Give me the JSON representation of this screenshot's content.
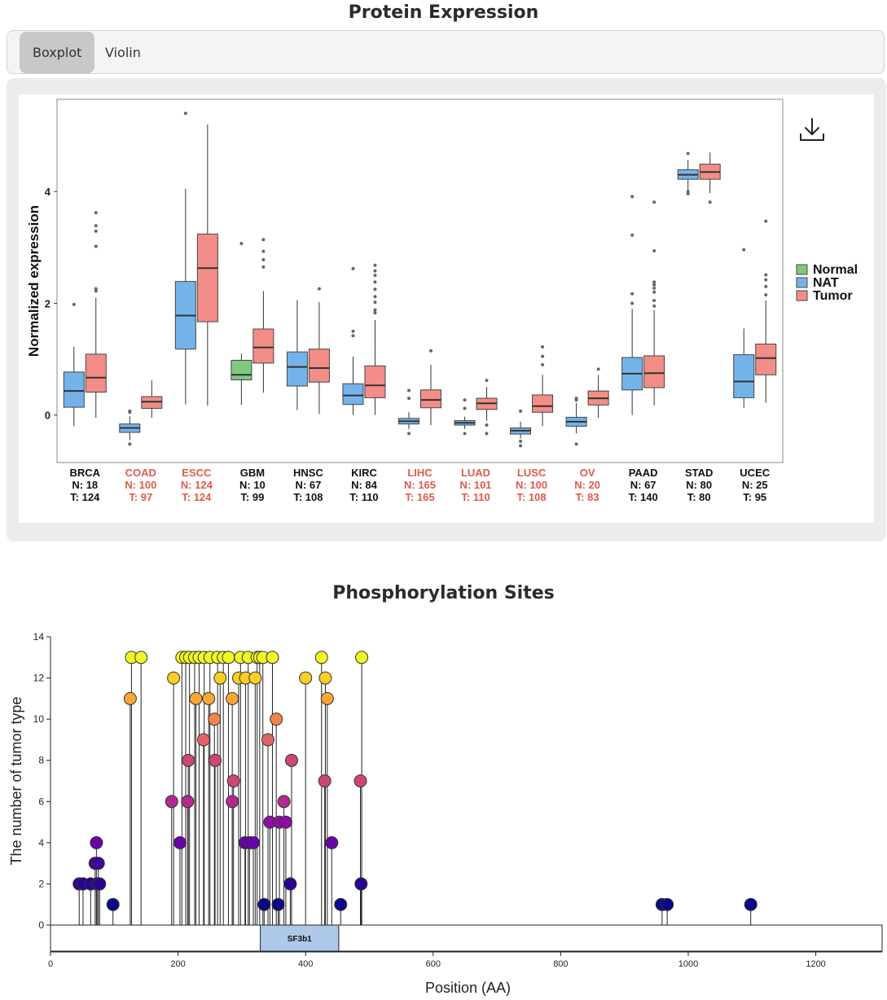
{
  "expression": {
    "title": "Protein Expression",
    "tabs": [
      {
        "label": "Boxplot",
        "active": true
      },
      {
        "label": "Violin",
        "active": false
      }
    ],
    "download_icon": "download-icon"
  },
  "phospho": {
    "title": "Phosphorylation Sites"
  },
  "colors": {
    "normal": "#7fc97f",
    "nat": "#74b3ea",
    "tumor": "#f28e87",
    "highlight_label": "#e05a4a",
    "domain": "#aec8ea"
  },
  "chart_data": [
    {
      "type": "boxplot",
      "ylabel": "Normalized expression",
      "ylim": [
        -0.85,
        5.65
      ],
      "yticks": [
        0,
        2,
        4
      ],
      "legend": {
        "placement": "right",
        "entries": [
          "Normal",
          "NAT",
          "Tumor"
        ]
      },
      "categories": [
        {
          "name": "BRCA",
          "highlight": false,
          "counts": [
            "N: 18",
            "T: 124"
          ],
          "boxes": [
            {
              "group": "NAT",
              "q1": 0.14,
              "median": 0.43,
              "q3": 0.77,
              "wlo": -0.2,
              "whi": 1.22,
              "outliers": [
                1.98
              ]
            },
            {
              "group": "Tumor",
              "q1": 0.41,
              "median": 0.67,
              "q3": 1.09,
              "wlo": -0.05,
              "whi": 2.1,
              "outliers": [
                2.22,
                2.26,
                3.02,
                3.29,
                3.39,
                3.62
              ]
            }
          ]
        },
        {
          "name": "COAD",
          "highlight": true,
          "counts": [
            "N: 100",
            "T: 97"
          ],
          "boxes": [
            {
              "group": "NAT",
              "q1": -0.31,
              "median": -0.23,
              "q3": -0.16,
              "wlo": -0.45,
              "whi": -0.02,
              "outliers": [
                -0.52,
                0.05,
                0.07
              ]
            },
            {
              "group": "Tumor",
              "q1": 0.12,
              "median": 0.24,
              "q3": 0.33,
              "wlo": -0.05,
              "whi": 0.62,
              "outliers": []
            }
          ]
        },
        {
          "name": "ESCC",
          "highlight": true,
          "counts": [
            "N: 124",
            "T: 124"
          ],
          "boxes": [
            {
              "group": "NAT",
              "q1": 1.18,
              "median": 1.78,
              "q3": 2.39,
              "wlo": 0.19,
              "whi": 4.05,
              "outliers": [
                5.4
              ]
            },
            {
              "group": "Tumor",
              "q1": 1.67,
              "median": 2.63,
              "q3": 3.24,
              "wlo": 0.17,
              "whi": 5.2,
              "outliers": []
            }
          ]
        },
        {
          "name": "GBM",
          "highlight": false,
          "counts": [
            "N: 10",
            "T: 99"
          ],
          "boxes": [
            {
              "group": "Normal",
              "q1": 0.63,
              "median": 0.72,
              "q3": 0.98,
              "wlo": 0.18,
              "whi": 1.1,
              "outliers": [
                3.07
              ]
            },
            {
              "group": "Tumor",
              "q1": 0.93,
              "median": 1.21,
              "q3": 1.54,
              "wlo": 0.4,
              "whi": 2.22,
              "outliers": [
                2.65,
                2.78,
                2.93,
                3.14
              ]
            }
          ]
        },
        {
          "name": "HNSC",
          "highlight": false,
          "counts": [
            "N: 67",
            "T: 108"
          ],
          "boxes": [
            {
              "group": "NAT",
              "q1": 0.52,
              "median": 0.86,
              "q3": 1.13,
              "wlo": 0.09,
              "whi": 2.06,
              "outliers": []
            },
            {
              "group": "Tumor",
              "q1": 0.59,
              "median": 0.84,
              "q3": 1.18,
              "wlo": 0.02,
              "whi": 2.02,
              "outliers": [
                2.26
              ]
            }
          ]
        },
        {
          "name": "KIRC",
          "highlight": false,
          "counts": [
            "N: 84",
            "T: 110"
          ],
          "boxes": [
            {
              "group": "NAT",
              "q1": 0.19,
              "median": 0.35,
              "q3": 0.56,
              "wlo": 0.0,
              "whi": 1.05,
              "outliers": [
                1.42,
                1.5,
                2.62
              ]
            },
            {
              "group": "Tumor",
              "q1": 0.31,
              "median": 0.53,
              "q3": 0.88,
              "wlo": 0.0,
              "whi": 1.7,
              "outliers": [
                1.83,
                1.88,
                2.02,
                2.12,
                2.25,
                2.38,
                2.5,
                2.58,
                2.68
              ]
            }
          ]
        },
        {
          "name": "LIHC",
          "highlight": true,
          "counts": [
            "N: 165",
            "T: 165"
          ],
          "boxes": [
            {
              "group": "NAT",
              "q1": -0.16,
              "median": -0.11,
              "q3": -0.06,
              "wlo": -0.25,
              "whi": 0.05,
              "outliers": [
                -0.33,
                0.3,
                0.44
              ]
            },
            {
              "group": "Tumor",
              "q1": 0.13,
              "median": 0.27,
              "q3": 0.45,
              "wlo": -0.18,
              "whi": 0.9,
              "outliers": [
                1.15
              ]
            }
          ]
        },
        {
          "name": "LUAD",
          "highlight": true,
          "counts": [
            "N: 101",
            "T: 110"
          ],
          "boxes": [
            {
              "group": "NAT",
              "q1": -0.18,
              "median": -0.14,
              "q3": -0.1,
              "wlo": -0.25,
              "whi": -0.03,
              "outliers": [
                -0.33,
                0.12,
                0.27
              ]
            },
            {
              "group": "Tumor",
              "q1": 0.1,
              "median": 0.21,
              "q3": 0.3,
              "wlo": -0.1,
              "whi": 0.5,
              "outliers": [
                -0.18,
                -0.33,
                0.62
              ]
            }
          ]
        },
        {
          "name": "LUSC",
          "highlight": true,
          "counts": [
            "N: 100",
            "T: 108"
          ],
          "boxes": [
            {
              "group": "NAT",
              "q1": -0.34,
              "median": -0.28,
              "q3": -0.23,
              "wlo": -0.42,
              "whi": -0.12,
              "outliers": [
                -0.47,
                -0.55,
                0.07
              ]
            },
            {
              "group": "Tumor",
              "q1": 0.05,
              "median": 0.16,
              "q3": 0.36,
              "wlo": -0.2,
              "whi": 0.72,
              "outliers": [
                0.9,
                1.05,
                1.22
              ]
            }
          ]
        },
        {
          "name": "OV",
          "highlight": true,
          "counts": [
            "N: 20",
            "T: 83"
          ],
          "boxes": [
            {
              "group": "NAT",
              "q1": -0.2,
              "median": -0.12,
              "q3": -0.04,
              "wlo": -0.33,
              "whi": 0.22,
              "outliers": [
                -0.52,
                0.27,
                0.3
              ]
            },
            {
              "group": "Tumor",
              "q1": 0.18,
              "median": 0.3,
              "q3": 0.43,
              "wlo": -0.05,
              "whi": 0.72,
              "outliers": [
                0.82
              ]
            }
          ]
        },
        {
          "name": "PAAD",
          "highlight": false,
          "counts": [
            "N: 67",
            "T: 140"
          ],
          "boxes": [
            {
              "group": "NAT",
              "q1": 0.45,
              "median": 0.74,
              "q3": 1.03,
              "wlo": 0.0,
              "whi": 1.9,
              "outliers": [
                2.0,
                2.17,
                3.22,
                3.91
              ]
            },
            {
              "group": "Tumor",
              "q1": 0.49,
              "median": 0.75,
              "q3": 1.06,
              "wlo": 0.17,
              "whi": 1.88,
              "outliers": [
                1.95,
                2.05,
                2.2,
                2.27,
                2.33,
                2.38,
                2.94,
                3.81
              ]
            }
          ]
        },
        {
          "name": "STAD",
          "highlight": false,
          "counts": [
            "N: 80",
            "T: 80"
          ],
          "boxes": [
            {
              "group": "NAT",
              "q1": 4.22,
              "median": 4.3,
              "q3": 4.39,
              "wlo": 4.03,
              "whi": 4.56,
              "outliers": [
                3.96,
                4.0,
                4.68
              ]
            },
            {
              "group": "Tumor",
              "q1": 4.22,
              "median": 4.35,
              "q3": 4.49,
              "wlo": 3.97,
              "whi": 4.7,
              "outliers": [
                3.81
              ]
            }
          ]
        },
        {
          "name": "UCEC",
          "highlight": false,
          "counts": [
            "N: 25",
            "T: 95"
          ],
          "boxes": [
            {
              "group": "NAT",
              "q1": 0.31,
              "median": 0.6,
              "q3": 1.08,
              "wlo": 0.13,
              "whi": 1.55,
              "outliers": [
                2.96
              ]
            },
            {
              "group": "Tumor",
              "q1": 0.72,
              "median": 1.02,
              "q3": 1.27,
              "wlo": 0.22,
              "whi": 2.05,
              "outliers": [
                2.15,
                2.3,
                2.42,
                2.51,
                3.47
              ]
            }
          ]
        }
      ]
    },
    {
      "type": "lollipop",
      "xlabel": "Position (AA)",
      "ylabel": "The number of tumor type",
      "xlim": [
        0,
        1304
      ],
      "ylim": [
        0,
        14
      ],
      "xticks": [
        0,
        200,
        400,
        600,
        800,
        1000,
        1200
      ],
      "yticks": [
        0,
        2,
        4,
        6,
        8,
        10,
        12,
        14
      ],
      "domains": [
        {
          "name": "SF3b1",
          "start": 329,
          "end": 452
        }
      ],
      "sites": [
        {
          "x": 45,
          "y": 2
        },
        {
          "x": 51,
          "y": 2
        },
        {
          "x": 63,
          "y": 2
        },
        {
          "x": 70,
          "y": 3
        },
        {
          "x": 72,
          "y": 4
        },
        {
          "x": 73,
          "y": 2
        },
        {
          "x": 75,
          "y": 3
        },
        {
          "x": 77,
          "y": 2
        },
        {
          "x": 98,
          "y": 1
        },
        {
          "x": 125,
          "y": 11
        },
        {
          "x": 127,
          "y": 13
        },
        {
          "x": 142,
          "y": 13
        },
        {
          "x": 190,
          "y": 6
        },
        {
          "x": 193,
          "y": 12
        },
        {
          "x": 203,
          "y": 4
        },
        {
          "x": 206,
          "y": 13
        },
        {
          "x": 212,
          "y": 13
        },
        {
          "x": 215,
          "y": 6
        },
        {
          "x": 216,
          "y": 8
        },
        {
          "x": 218,
          "y": 13
        },
        {
          "x": 226,
          "y": 13
        },
        {
          "x": 228,
          "y": 11
        },
        {
          "x": 233,
          "y": 13
        },
        {
          "x": 240,
          "y": 9
        },
        {
          "x": 241,
          "y": 13
        },
        {
          "x": 248,
          "y": 11
        },
        {
          "x": 250,
          "y": 13
        },
        {
          "x": 257,
          "y": 10
        },
        {
          "x": 258,
          "y": 8
        },
        {
          "x": 262,
          "y": 13
        },
        {
          "x": 266,
          "y": 12
        },
        {
          "x": 271,
          "y": 13
        },
        {
          "x": 279,
          "y": 13
        },
        {
          "x": 285,
          "y": 6
        },
        {
          "x": 285,
          "y": 11
        },
        {
          "x": 287,
          "y": 7
        },
        {
          "x": 295,
          "y": 12
        },
        {
          "x": 298,
          "y": 13
        },
        {
          "x": 305,
          "y": 4
        },
        {
          "x": 306,
          "y": 12
        },
        {
          "x": 310,
          "y": 13
        },
        {
          "x": 312,
          "y": 4
        },
        {
          "x": 318,
          "y": 4
        },
        {
          "x": 321,
          "y": 12
        },
        {
          "x": 324,
          "y": 13
        },
        {
          "x": 328,
          "y": 13
        },
        {
          "x": 333,
          "y": 13
        },
        {
          "x": 335,
          "y": 1
        },
        {
          "x": 341,
          "y": 9
        },
        {
          "x": 344,
          "y": 5
        },
        {
          "x": 348,
          "y": 13
        },
        {
          "x": 354,
          "y": 10
        },
        {
          "x": 357,
          "y": 1
        },
        {
          "x": 359,
          "y": 5
        },
        {
          "x": 366,
          "y": 6
        },
        {
          "x": 369,
          "y": 5
        },
        {
          "x": 376,
          "y": 2
        },
        {
          "x": 378,
          "y": 8
        },
        {
          "x": 400,
          "y": 12
        },
        {
          "x": 425,
          "y": 13
        },
        {
          "x": 430,
          "y": 7
        },
        {
          "x": 431,
          "y": 12
        },
        {
          "x": 434,
          "y": 11
        },
        {
          "x": 441,
          "y": 4
        },
        {
          "x": 455,
          "y": 1
        },
        {
          "x": 486,
          "y": 7
        },
        {
          "x": 487,
          "y": 2
        },
        {
          "x": 488,
          "y": 13
        },
        {
          "x": 959,
          "y": 1
        },
        {
          "x": 967,
          "y": 1
        },
        {
          "x": 1098,
          "y": 1
        }
      ]
    }
  ]
}
